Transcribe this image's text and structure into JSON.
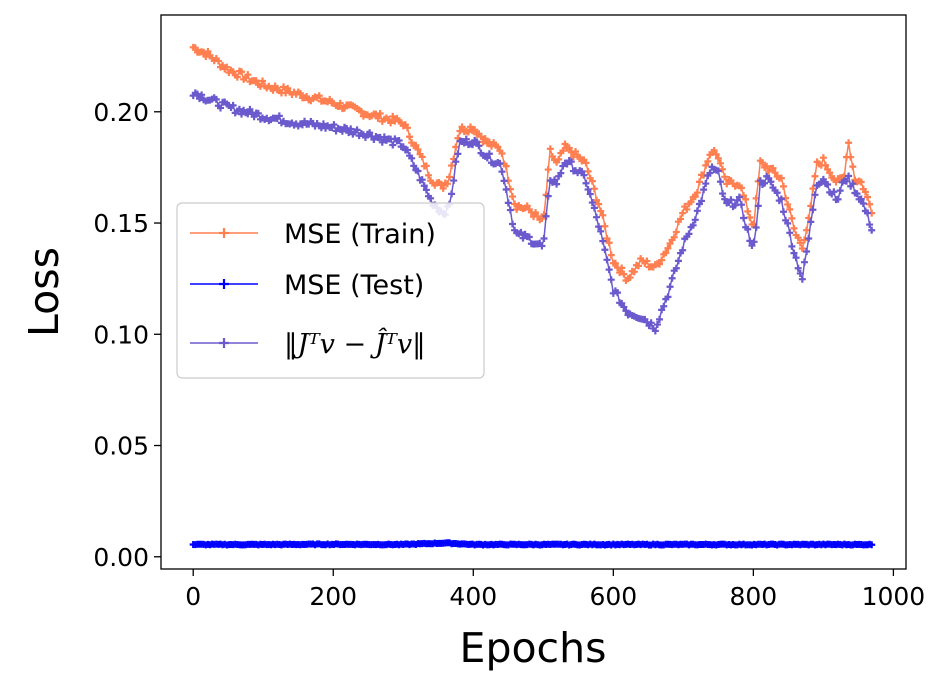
{
  "chart_data": {
    "type": "line",
    "xlabel": "Epochs",
    "ylabel": "Loss",
    "xlim": [
      -46,
      1018
    ],
    "ylim": [
      -0.0055,
      0.2435
    ],
    "xticks": [
      0,
      200,
      400,
      600,
      800,
      1000
    ],
    "xtick_labels": [
      "0",
      "200",
      "400",
      "600",
      "800",
      "1000"
    ],
    "yticks": [
      0.0,
      0.05,
      0.1,
      0.15,
      0.2
    ],
    "ytick_labels": [
      "0.00",
      "0.05",
      "0.10",
      "0.15",
      "0.20"
    ],
    "grid": false,
    "legend_position": "center-left",
    "series": [
      {
        "name": "MSE (Train)",
        "color": "#ff7f50",
        "marker": "+",
        "x": [
          0,
          20,
          50,
          100,
          150,
          200,
          250,
          300,
          320,
          340,
          355,
          365,
          380,
          400,
          420,
          440,
          460,
          480,
          500,
          510,
          520,
          530,
          540,
          560,
          580,
          600,
          620,
          640,
          660,
          680,
          700,
          720,
          740,
          750,
          760,
          780,
          800,
          810,
          820,
          840,
          860,
          870,
          880,
          890,
          900,
          910,
          920,
          930,
          935,
          945,
          955,
          970
        ],
        "values": [
          0.229,
          0.226,
          0.219,
          0.212,
          0.208,
          0.204,
          0.199,
          0.195,
          0.183,
          0.17,
          0.166,
          0.17,
          0.192,
          0.193,
          0.186,
          0.183,
          0.158,
          0.156,
          0.15,
          0.182,
          0.176,
          0.184,
          0.182,
          0.177,
          0.158,
          0.133,
          0.125,
          0.133,
          0.13,
          0.14,
          0.155,
          0.165,
          0.183,
          0.18,
          0.168,
          0.168,
          0.148,
          0.177,
          0.175,
          0.17,
          0.145,
          0.14,
          0.152,
          0.176,
          0.178,
          0.173,
          0.168,
          0.171,
          0.188,
          0.17,
          0.168,
          0.155
        ]
      },
      {
        "name": "MSE (Test)",
        "color": "#0000ff",
        "marker": "+",
        "x": [
          0,
          100,
          200,
          300,
          360,
          400,
          500,
          600,
          700,
          800,
          900,
          970
        ],
        "values": [
          0.0055,
          0.0055,
          0.0056,
          0.0055,
          0.0062,
          0.0055,
          0.0055,
          0.0055,
          0.0055,
          0.0055,
          0.0055,
          0.0055
        ]
      },
      {
        "name": "‖Jᵀv − Ĵᵀv‖",
        "color": "#6a5acd",
        "marker": "+",
        "x": [
          0,
          20,
          50,
          100,
          150,
          200,
          250,
          300,
          320,
          340,
          355,
          365,
          380,
          400,
          420,
          440,
          460,
          480,
          500,
          510,
          520,
          530,
          540,
          560,
          580,
          600,
          620,
          640,
          660,
          680,
          700,
          720,
          740,
          750,
          760,
          780,
          800,
          810,
          820,
          840,
          860,
          870,
          880,
          890,
          900,
          910,
          920,
          930,
          935,
          945,
          955,
          970
        ],
        "values": [
          0.209,
          0.206,
          0.202,
          0.198,
          0.195,
          0.193,
          0.19,
          0.185,
          0.173,
          0.16,
          0.155,
          0.156,
          0.186,
          0.187,
          0.18,
          0.176,
          0.145,
          0.143,
          0.139,
          0.17,
          0.168,
          0.178,
          0.176,
          0.17,
          0.148,
          0.12,
          0.11,
          0.108,
          0.103,
          0.12,
          0.14,
          0.155,
          0.175,
          0.172,
          0.158,
          0.16,
          0.137,
          0.168,
          0.17,
          0.16,
          0.135,
          0.125,
          0.145,
          0.168,
          0.17,
          0.165,
          0.16,
          0.17,
          0.17,
          0.165,
          0.16,
          0.147
        ]
      }
    ]
  }
}
